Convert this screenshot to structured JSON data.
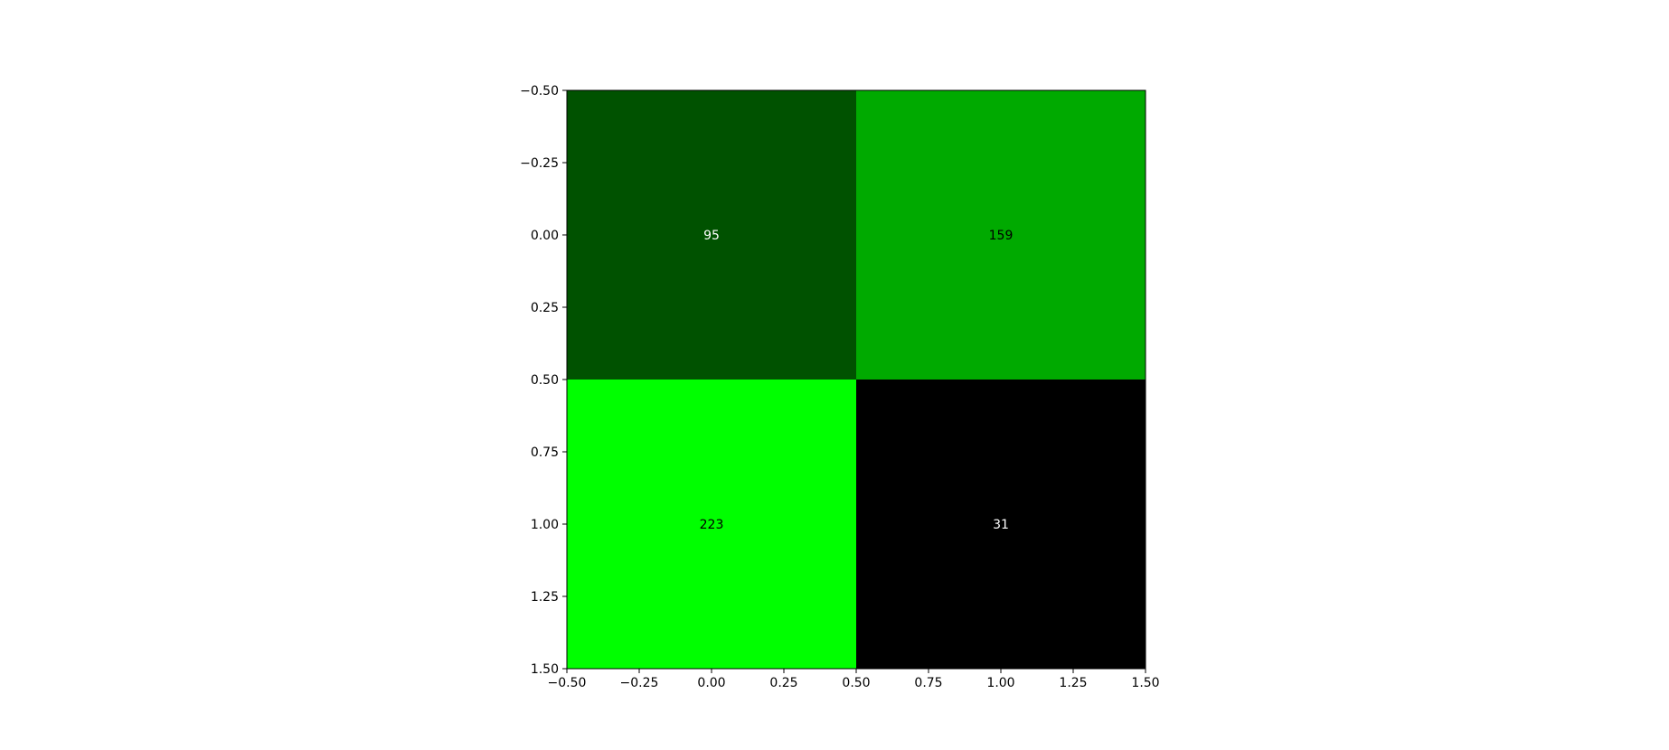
{
  "chart_data": {
    "type": "heatmap",
    "title": "",
    "xlabel": "",
    "ylabel": "",
    "xlim": [
      -0.5,
      1.5
    ],
    "ylim": [
      1.5,
      -0.5
    ],
    "y_axis_inverted": true,
    "grid": false,
    "x_ticks": [
      -0.5,
      -0.25,
      0.0,
      0.25,
      0.5,
      0.75,
      1.0,
      1.25,
      1.5
    ],
    "x_tick_labels": [
      "−0.50",
      "−0.25",
      "0.00",
      "0.25",
      "0.50",
      "0.75",
      "1.00",
      "1.25",
      "1.50"
    ],
    "y_ticks": [
      -0.5,
      -0.25,
      0.0,
      0.25,
      0.5,
      0.75,
      1.0,
      1.25,
      1.5
    ],
    "y_tick_labels": [
      "−0.50",
      "−0.25",
      "0.00",
      "0.25",
      "0.50",
      "0.75",
      "1.00",
      "1.25",
      "1.50"
    ],
    "cells": [
      {
        "row": 0,
        "col": 0,
        "value": 95,
        "label": "95",
        "color": "#005200",
        "label_color": "#ffffff"
      },
      {
        "row": 0,
        "col": 1,
        "value": 159,
        "label": "159",
        "color": "#00aa00",
        "label_color": "#000000"
      },
      {
        "row": 1,
        "col": 0,
        "value": 223,
        "label": "223",
        "color": "#00ff00",
        "label_color": "#000000"
      },
      {
        "row": 1,
        "col": 1,
        "value": 31,
        "label": "31",
        "color": "#000000",
        "label_color": "#ffffff"
      }
    ]
  }
}
